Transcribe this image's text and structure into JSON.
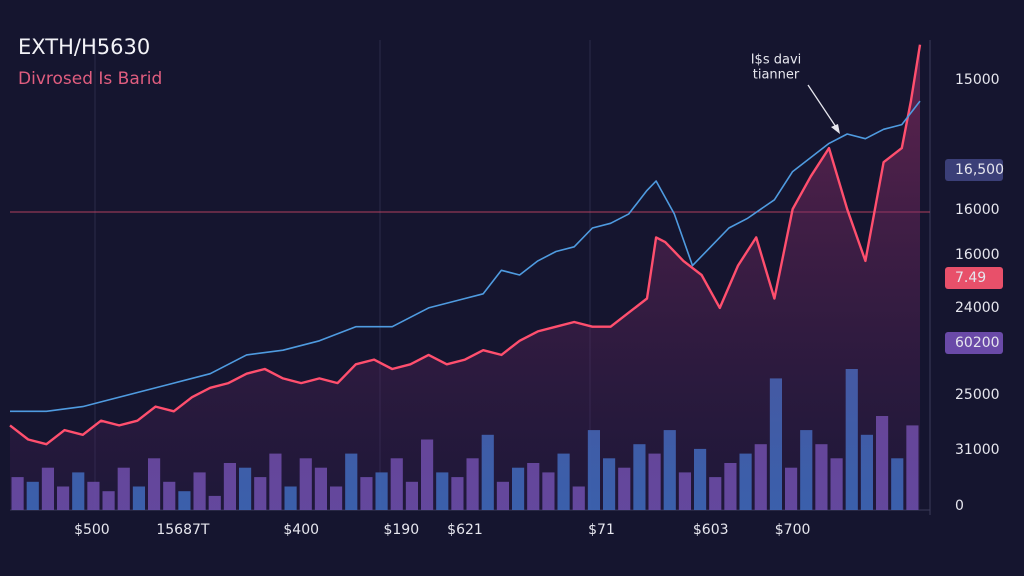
{
  "chart_data": {
    "type": "line",
    "title": "EXTH/H5630",
    "subtitle": "Divrosed Is Barid",
    "annotation": [
      "I$s davi",
      "tianner"
    ],
    "xlim": [
      0,
      100
    ],
    "ylim": [
      0,
      100
    ],
    "xticks": [
      {
        "value": 9,
        "label": "$500"
      },
      {
        "value": 19,
        "label": "15687T"
      },
      {
        "value": 32,
        "label": "$400"
      },
      {
        "value": 43,
        "label": "$190"
      },
      {
        "value": 50,
        "label": "$621"
      },
      {
        "value": 65,
        "label": "$71"
      },
      {
        "value": 77,
        "label": "$603"
      },
      {
        "value": 86,
        "label": "$700"
      }
    ],
    "side_labels": [
      {
        "label": "15000"
      },
      {
        "label": "16,500",
        "badge": "#3b3f78"
      },
      {
        "label": "16000"
      },
      {
        "label": "16000"
      },
      {
        "label": "7.49",
        "badge": "#e8506a"
      },
      {
        "label": "24000"
      },
      {
        "label": "60200",
        "badge": "#6a4aa8"
      },
      {
        "label": "25000"
      },
      {
        "label": "31000"
      },
      {
        "label": "0"
      }
    ],
    "series": [
      {
        "color": "#ff4f6e",
        "x": [
          0,
          2,
          4,
          6,
          8,
          10,
          12,
          14,
          16,
          18,
          20,
          22,
          24,
          26,
          28,
          30,
          32,
          34,
          36,
          38,
          40,
          42,
          44,
          46,
          48,
          50,
          52,
          54,
          56,
          58,
          60,
          62,
          64,
          66,
          68,
          70,
          71,
          72,
          74,
          76,
          78,
          80,
          82,
          84,
          86,
          88,
          90,
          92,
          94,
          96,
          98,
          99,
          100
        ],
        "values": [
          18,
          15,
          14,
          17,
          16,
          19,
          18,
          19,
          22,
          21,
          24,
          26,
          27,
          29,
          30,
          28,
          27,
          28,
          27,
          31,
          32,
          30,
          31,
          33,
          31,
          32,
          34,
          33,
          36,
          38,
          39,
          40,
          39,
          39,
          42,
          45,
          58,
          57,
          53,
          50,
          43,
          52,
          58,
          45,
          64,
          71,
          77,
          64,
          53,
          74,
          77,
          87,
          99
        ]
      },
      {
        "color": "#4f9be0",
        "x": [
          0,
          4,
          8,
          10,
          14,
          18,
          22,
          26,
          30,
          34,
          38,
          42,
          46,
          50,
          52,
          54,
          56,
          58,
          60,
          62,
          64,
          66,
          68,
          70,
          71,
          73,
          75,
          77,
          79,
          81,
          84,
          86,
          88,
          90,
          92,
          94,
          96,
          98,
          100
        ],
        "values": [
          21,
          21,
          22,
          23,
          25,
          27,
          29,
          33,
          34,
          36,
          39,
          39,
          43,
          45,
          46,
          51,
          50,
          53,
          55,
          56,
          60,
          61,
          63,
          68,
          70,
          63,
          52,
          56,
          60,
          62,
          66,
          72,
          75,
          78,
          80,
          79,
          81,
          82,
          87
        ]
      }
    ],
    "bars": {
      "values": [
        7,
        6,
        9,
        5,
        8,
        6,
        4,
        9,
        5,
        11,
        6,
        4,
        8,
        3,
        10,
        9,
        7,
        12,
        5,
        11,
        9,
        5,
        12,
        7,
        8,
        11,
        6,
        15,
        8,
        7,
        11,
        16,
        6,
        9,
        10,
        8,
        12,
        5,
        17,
        11,
        9,
        14,
        12,
        17,
        8,
        13,
        7,
        10,
        12,
        14,
        28,
        9,
        17,
        14,
        11,
        30,
        16,
        20,
        11,
        18
      ],
      "colors": [
        "#7b5cc4",
        "#3f7fd9",
        "#7b5cc4",
        "#7b5cc4",
        "#3f7fd9",
        "#7b5cc4",
        "#7b5cc4",
        "#7b5cc4",
        "#3f7fd9",
        "#7b5cc4",
        "#7b5cc4",
        "#3f7fd9",
        "#7b5cc4",
        "#7b5cc4",
        "#7b5cc4",
        "#3f7fd9",
        "#7b5cc4",
        "#7b5cc4",
        "#3f7fd9",
        "#7b5cc4",
        "#7b5cc4",
        "#7b5cc4",
        "#3f7fd9",
        "#7b5cc4",
        "#3f7fd9",
        "#7b5cc4",
        "#7b5cc4",
        "#7b5cc4",
        "#3f7fd9",
        "#7b5cc4",
        "#7b5cc4",
        "#3f7fd9",
        "#7b5cc4",
        "#3f7fd9",
        "#7b5cc4",
        "#7b5cc4",
        "#3f7fd9",
        "#7b5cc4",
        "#3f7fd9",
        "#3f7fd9",
        "#7b5cc4",
        "#3f7fd9",
        "#7b5cc4",
        "#3f7fd9",
        "#7b5cc4",
        "#3f7fd9",
        "#7b5cc4",
        "#7b5cc4",
        "#3f7fd9",
        "#7b5cc4",
        "#3f7fd9",
        "#7b5cc4",
        "#3f7fd9",
        "#7b5cc4",
        "#7b5cc4",
        "#3f7fd9",
        "#3f7fd9",
        "#7b5cc4",
        "#3f7fd9",
        "#7b5cc4"
      ]
    }
  }
}
